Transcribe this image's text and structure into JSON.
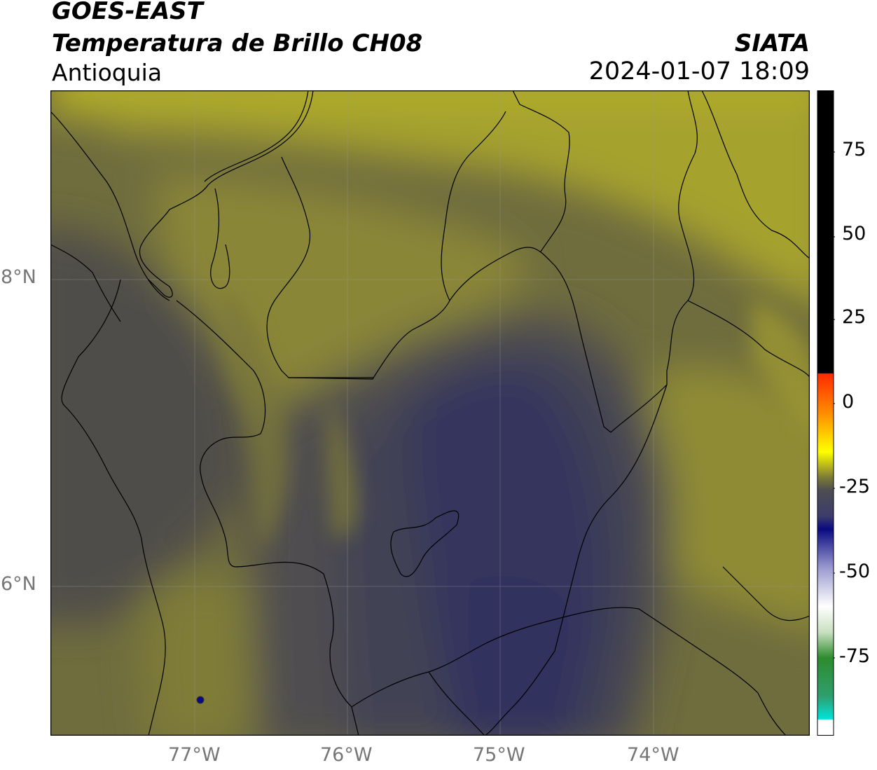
{
  "header": {
    "satellite": "GOES-EAST",
    "product": "Temperatura de Brillo CH08",
    "region": "Antioquia",
    "agency": "SIATA",
    "datetime": "2024-01-07 18:09"
  },
  "axes": {
    "longitude_labels": [
      "77°W",
      "76°W",
      "75°W",
      "74°W"
    ],
    "latitude_labels": [
      "8°N",
      "6°N"
    ]
  },
  "colorbar": {
    "labels": [
      "75",
      "50",
      "25",
      "0",
      "-25",
      "-50",
      "-75"
    ],
    "colors": {
      "black": "#000000",
      "red": "#ff2a00",
      "orange": "#ff8c00",
      "yellow": "#ffff00",
      "olive": "#7c7a35",
      "gray": "#4d4d52",
      "navy": "#0a0a80",
      "white": "#ffffff",
      "green": "#2e8b2e",
      "cyan": "#00e5dc"
    }
  },
  "map_colors": {
    "bright_yellow": "#b6b127",
    "yellow": "#a6a22e",
    "olive": "#8a8639",
    "dark_olive": "#6f6c3e",
    "gray": "#4f4e48",
    "slate": "#434255",
    "purple": "#36365d"
  }
}
